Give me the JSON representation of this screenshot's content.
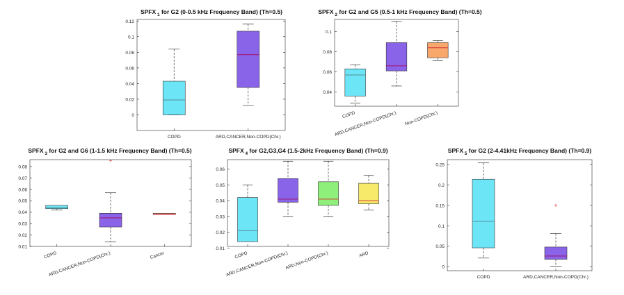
{
  "chart_data": [
    {
      "type": "boxplot",
      "title": "SPFX 1 for G2 (0-0.5 kHz Frequency Band) (Th=0.5)",
      "title_parts": {
        "prefix": "SPFX",
        "sub": "1",
        "rest": " for G2 (0-0.5 kHz Frequency Band) (Th=0.5)"
      },
      "ylim": [
        -0.02,
        0.122
      ],
      "yticks": [
        "0",
        "0.02",
        "0.04",
        "0.06",
        "0.08",
        "0.1",
        "0.12"
      ],
      "ytick_values": [
        0,
        0.02,
        0.04,
        0.06,
        0.08,
        0.1,
        0.12
      ],
      "categories": [
        "COPD",
        "ARD,CANCER,Non-COPD(Chr.)"
      ],
      "xtick_rotated": false,
      "boxes": [
        {
          "label": "COPD",
          "color": "#6ce5f7",
          "min": 0.0,
          "q1": 0.0,
          "median": 0.019,
          "q3": 0.043,
          "max": 0.084,
          "outliers": []
        },
        {
          "label": "ARD,CANCER,Non-COPD(Chr.)",
          "color": "#8a64e8",
          "min": 0.012,
          "q1": 0.035,
          "median": 0.077,
          "q3": 0.107,
          "max": 0.116,
          "outliers": []
        }
      ]
    },
    {
      "type": "boxplot",
      "title": "SPFX 2 for G2 and G5 (0.5-1 kHz Frequency Band) (Th=0.5)",
      "title_parts": {
        "prefix": "SPFX",
        "sub": "2",
        "rest": " for G2 and G5 (0.5-1 kHz Frequency Band) (Th=0.5)"
      },
      "ylim": [
        0.026,
        0.112
      ],
      "yticks": [
        "0.04",
        "0.06",
        "0.08",
        "0.1"
      ],
      "ytick_values": [
        0.04,
        0.06,
        0.08,
        0.1
      ],
      "categories": [
        "COPD",
        "ARD,CANCER,Non-COPD(Chr.)",
        "Non-COPD(Chr.)"
      ],
      "xtick_rotated": true,
      "boxes": [
        {
          "label": "COPD",
          "color": "#6ce5f7",
          "min": 0.029,
          "q1": 0.036,
          "median": 0.057,
          "q3": 0.063,
          "max": 0.067,
          "outliers": []
        },
        {
          "label": "ARD,CANCER,Non-COPD(Chr.)",
          "color": "#8a64e8",
          "min": 0.046,
          "q1": 0.061,
          "median": 0.066,
          "q3": 0.089,
          "max": 0.11,
          "outliers": []
        },
        {
          "label": "Non-COPD(Chr.)",
          "color": "#f7a86a",
          "min": 0.071,
          "q1": 0.074,
          "median": 0.084,
          "q3": 0.089,
          "max": 0.091,
          "outliers": []
        }
      ]
    },
    {
      "type": "boxplot",
      "title": "SPFX 3 for G2 and G6 (1-1.5 kHz Frequency Band) (Th=0.5)",
      "title_parts": {
        "prefix": "SPFX",
        "sub": "3",
        "rest": " for G2 and G6 (1-1.5 kHz Frequency Band) (Th=0.5)"
      },
      "ylim": [
        0.01,
        0.086
      ],
      "yticks": [
        "0.01",
        "0.02",
        "0.03",
        "0.04",
        "0.05",
        "0.06",
        "0.07",
        "0.08"
      ],
      "ytick_values": [
        0.01,
        0.02,
        0.03,
        0.04,
        0.05,
        0.06,
        0.07,
        0.08
      ],
      "categories": [
        "COPD",
        "ARD,CANCER,Non-COPD(Chr.)",
        "Cancer"
      ],
      "xtick_rotated": true,
      "boxes": [
        {
          "label": "COPD",
          "color": "#6ce5f7",
          "min": 0.042,
          "q1": 0.043,
          "median": 0.044,
          "q3": 0.046,
          "max": 0.046,
          "outliers": []
        },
        {
          "label": "ARD,CANCER,Non-COPD(Chr.)",
          "color": "#8a64e8",
          "min": 0.014,
          "q1": 0.027,
          "median": 0.035,
          "q3": 0.039,
          "max": 0.057,
          "outliers": [
            0.085
          ]
        },
        {
          "label": "Cancer",
          "color": "#f07a7a",
          "min": 0.038,
          "q1": 0.038,
          "median": 0.038,
          "q3": 0.039,
          "max": 0.039,
          "outliers": []
        }
      ]
    },
    {
      "type": "boxplot",
      "title": "SPFX 4 for G2,G3,G4 (1.5-2kHz Frequency Band) (Th=0.9)",
      "title_parts": {
        "prefix": "SPFX",
        "sub": "4",
        "rest": " for G2,G3,G4 (1.5-2kHz Frequency Band) (Th=0.9)"
      },
      "ylim": [
        0.011,
        0.066
      ],
      "yticks": [
        "0.01",
        "0.02",
        "0.03",
        "0.04",
        "0.05",
        "0.06"
      ],
      "ytick_values": [
        0.01,
        0.02,
        0.03,
        0.04,
        0.05,
        0.06
      ],
      "categories": [
        "COPD",
        "ARD,CANCER,Non-COPD(Chr.)",
        "ARD,Non-COPD(Chr.)",
        "ARD"
      ],
      "xtick_rotated": true,
      "boxes": [
        {
          "label": "COPD",
          "color": "#6ce5f7",
          "min": 0.014,
          "q1": 0.014,
          "median": 0.021,
          "q3": 0.042,
          "max": 0.05,
          "outliers": []
        },
        {
          "label": "ARD,CANCER,Non-COPD(Chr.)",
          "color": "#8a64e8",
          "min": 0.03,
          "q1": 0.039,
          "median": 0.041,
          "q3": 0.054,
          "max": 0.065,
          "outliers": []
        },
        {
          "label": "ARD,Non-COPD(Chr.)",
          "color": "#8ef07a",
          "min": 0.03,
          "q1": 0.037,
          "median": 0.041,
          "q3": 0.052,
          "max": 0.065,
          "outliers": []
        },
        {
          "label": "ARD",
          "color": "#f7ea6a",
          "min": 0.034,
          "q1": 0.038,
          "median": 0.04,
          "q3": 0.051,
          "max": 0.056,
          "outliers": []
        }
      ]
    },
    {
      "type": "boxplot",
      "title": "SPFX 5 for G2 (2-4.41kHz Frequency Band) (Th=0.9)",
      "title_parts": {
        "prefix": "SPFX",
        "sub": "5",
        "rest": " for G2 (2-4.41kHz Frequency Band) (Th=0.9)"
      },
      "ylim": [
        -0.01,
        0.262
      ],
      "yticks": [
        "0",
        "0.05",
        "0.1",
        "0.15",
        "0.2",
        "0.25"
      ],
      "ytick_values": [
        0,
        0.05,
        0.1,
        0.15,
        0.2,
        0.25
      ],
      "categories": [
        "COPD",
        "ARD,CANCER,Non-COPD(Chr.)"
      ],
      "xtick_rotated": false,
      "boxes": [
        {
          "label": "COPD",
          "color": "#6ce5f7",
          "min": 0.021,
          "q1": 0.046,
          "median": 0.111,
          "q3": 0.214,
          "max": 0.254,
          "outliers": []
        },
        {
          "label": "ARD,CANCER,Non-COPD(Chr.)",
          "color": "#8a64e8",
          "min": 0.001,
          "q1": 0.018,
          "median": 0.026,
          "q3": 0.048,
          "max": 0.081,
          "outliers": [
            0.15
          ]
        }
      ]
    }
  ]
}
